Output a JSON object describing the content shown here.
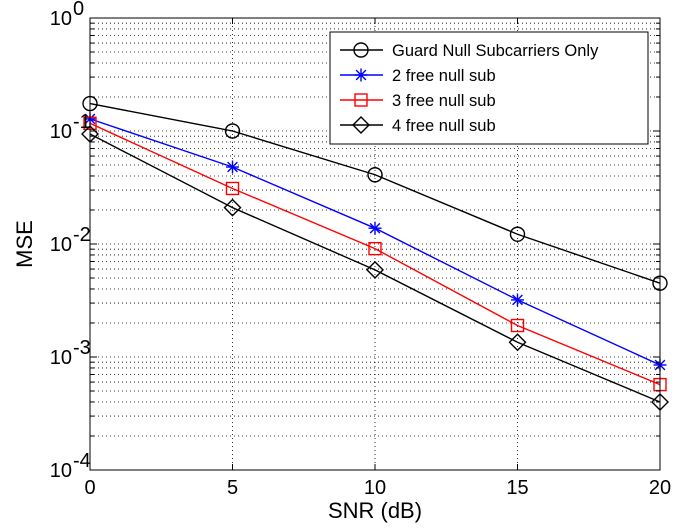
{
  "chart_data": {
    "type": "line",
    "xlabel": "SNR (dB)",
    "ylabel": "MSE",
    "x": [
      0,
      5,
      10,
      15,
      20
    ],
    "xlim": [
      0,
      20
    ],
    "ylim": [
      0.0001,
      1
    ],
    "yscale": "log",
    "grid": true,
    "legend_position": "top-right",
    "x_tick_labels": [
      "0",
      "5",
      "10",
      "15",
      "20"
    ],
    "y_tick_labels": [
      {
        "base": "10",
        "exp": "0",
        "value": 1
      },
      {
        "base": "10",
        "exp": "-1",
        "value": 0.1
      },
      {
        "base": "10",
        "exp": "-2",
        "value": 0.01
      },
      {
        "base": "10",
        "exp": "-3",
        "value": 0.001
      },
      {
        "base": "10",
        "exp": "-4",
        "value": 0.0001
      }
    ],
    "series": [
      {
        "name": "Guard Null Subcarriers Only",
        "color": "#000000",
        "marker": "circle",
        "values": [
          0.175,
          0.1,
          0.041,
          0.0122,
          0.0045
        ]
      },
      {
        "name": "2 free null sub",
        "color": "#0000ff",
        "marker": "asterisk",
        "values": [
          0.128,
          0.048,
          0.0138,
          0.0032,
          0.00085
        ]
      },
      {
        "name": "3 free null sub",
        "color": "#ff0000",
        "marker": "square",
        "values": [
          0.117,
          0.031,
          0.0091,
          0.0019,
          0.00057
        ]
      },
      {
        "name": "4 free null sub",
        "color": "#000000",
        "marker": "diamond",
        "values": [
          0.094,
          0.021,
          0.0059,
          0.00135,
          0.0004
        ]
      }
    ]
  }
}
